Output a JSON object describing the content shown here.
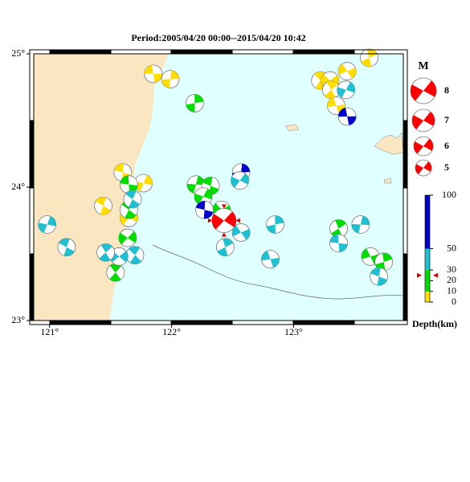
{
  "title": "Period:2005/04/20 00:00--2015/04/20 10:42",
  "map": {
    "xlim": [
      120.87,
      123.9
    ],
    "ylim": [
      23,
      25
    ],
    "xticks": [
      {
        "value": 121,
        "label": "121°"
      },
      {
        "value": 122,
        "label": "122°"
      },
      {
        "value": 123,
        "label": "123°"
      }
    ],
    "yticks": [
      {
        "value": 23,
        "label": "23°"
      },
      {
        "value": 24,
        "label": "24°"
      },
      {
        "value": 25,
        "label": "25°"
      }
    ],
    "land_color": "#fbe6c2",
    "sea_color": "#e0ffff"
  },
  "events": [
    {
      "lon": 121.85,
      "lat": 24.85,
      "color": "#ffdd00"
    },
    {
      "lon": 121.99,
      "lat": 24.81,
      "color": "#ffdd00"
    },
    {
      "lon": 121.6,
      "lat": 24.11,
      "color": "#ffdd00"
    },
    {
      "lon": 121.77,
      "lat": 24.03,
      "color": "#ffdd00"
    },
    {
      "lon": 121.44,
      "lat": 23.86,
      "color": "#ffdd00"
    },
    {
      "lon": 121.65,
      "lat": 23.77,
      "color": "#ffdd00"
    },
    {
      "lon": 123.22,
      "lat": 24.8,
      "color": "#ffdd00"
    },
    {
      "lon": 123.3,
      "lat": 24.8,
      "color": "#ffdd00"
    },
    {
      "lon": 123.31,
      "lat": 24.73,
      "color": "#ffdd00"
    },
    {
      "lon": 123.44,
      "lat": 24.87,
      "color": "#ffdd00"
    },
    {
      "lon": 123.62,
      "lat": 24.97,
      "color": "#ffdd00"
    },
    {
      "lon": 123.35,
      "lat": 24.61,
      "color": "#ffdd00"
    },
    {
      "lon": 122.19,
      "lat": 24.63,
      "color": "#00dd00"
    },
    {
      "lon": 121.65,
      "lat": 24.02,
      "color": "#00dd00"
    },
    {
      "lon": 122.2,
      "lat": 24.02,
      "color": "#00dd00"
    },
    {
      "lon": 122.32,
      "lat": 24.01,
      "color": "#00dd00"
    },
    {
      "lon": 122.26,
      "lat": 23.93,
      "color": "#00dd00"
    },
    {
      "lon": 121.65,
      "lat": 23.83,
      "color": "#00dd00"
    },
    {
      "lon": 121.64,
      "lat": 23.62,
      "color": "#00dd00"
    },
    {
      "lon": 121.54,
      "lat": 23.36,
      "color": "#00dd00"
    },
    {
      "lon": 122.41,
      "lat": 23.83,
      "color": "#00dd00"
    },
    {
      "lon": 123.37,
      "lat": 23.69,
      "color": "#00dd00"
    },
    {
      "lon": 123.63,
      "lat": 23.48,
      "color": "#00dd00"
    },
    {
      "lon": 123.74,
      "lat": 23.44,
      "color": "#00dd00"
    },
    {
      "lon": 123.44,
      "lat": 24.53,
      "color": "#0000cc"
    },
    {
      "lon": 122.57,
      "lat": 24.11,
      "color": "#0000cc"
    },
    {
      "lon": 122.27,
      "lat": 23.83,
      "color": "#0000cc"
    },
    {
      "lon": 120.98,
      "lat": 23.72,
      "color": "#20c0d0"
    },
    {
      "lon": 121.14,
      "lat": 23.55,
      "color": "#20c0d0"
    },
    {
      "lon": 122.56,
      "lat": 24.05,
      "color": "#20c0d0"
    },
    {
      "lon": 121.7,
      "lat": 23.49,
      "color": "#20c0d0"
    },
    {
      "lon": 121.57,
      "lat": 23.48,
      "color": "#20c0d0"
    },
    {
      "lon": 121.46,
      "lat": 23.51,
      "color": "#20c0d0"
    },
    {
      "lon": 122.57,
      "lat": 23.66,
      "color": "#20c0d0"
    },
    {
      "lon": 122.44,
      "lat": 23.55,
      "color": "#20c0d0"
    },
    {
      "lon": 122.81,
      "lat": 23.46,
      "color": "#20c0d0"
    },
    {
      "lon": 122.85,
      "lat": 23.72,
      "color": "#20c0d0"
    },
    {
      "lon": 123.37,
      "lat": 23.58,
      "color": "#20c0d0"
    },
    {
      "lon": 123.55,
      "lat": 23.72,
      "color": "#20c0d0"
    },
    {
      "lon": 123.7,
      "lat": 23.33,
      "color": "#20c0d0"
    },
    {
      "lon": 123.43,
      "lat": 24.73,
      "color": "#20c0d0"
    },
    {
      "lon": 121.68,
      "lat": 23.91,
      "color": "#20c0d0"
    },
    {
      "lon": 122.43,
      "lat": 23.75,
      "color": "#ff0000"
    }
  ],
  "magnitude_legend": {
    "title": "M",
    "values": [
      8,
      7,
      6,
      5
    ],
    "color": "#ff0000"
  },
  "depth_scale": {
    "label": "Depth(km)",
    "lim": [
      0,
      100
    ],
    "ticks": [
      0,
      10,
      20,
      30,
      50,
      100
    ],
    "bands": [
      {
        "from": 0,
        "to": 10,
        "color": "#ffdd00"
      },
      {
        "from": 10,
        "to": 30,
        "color": "#00dd00"
      },
      {
        "from": 30,
        "to": 50,
        "color": "#20c0d0"
      },
      {
        "from": 50,
        "to": 100,
        "color": "#0000cc"
      }
    ],
    "marker": 25
  }
}
